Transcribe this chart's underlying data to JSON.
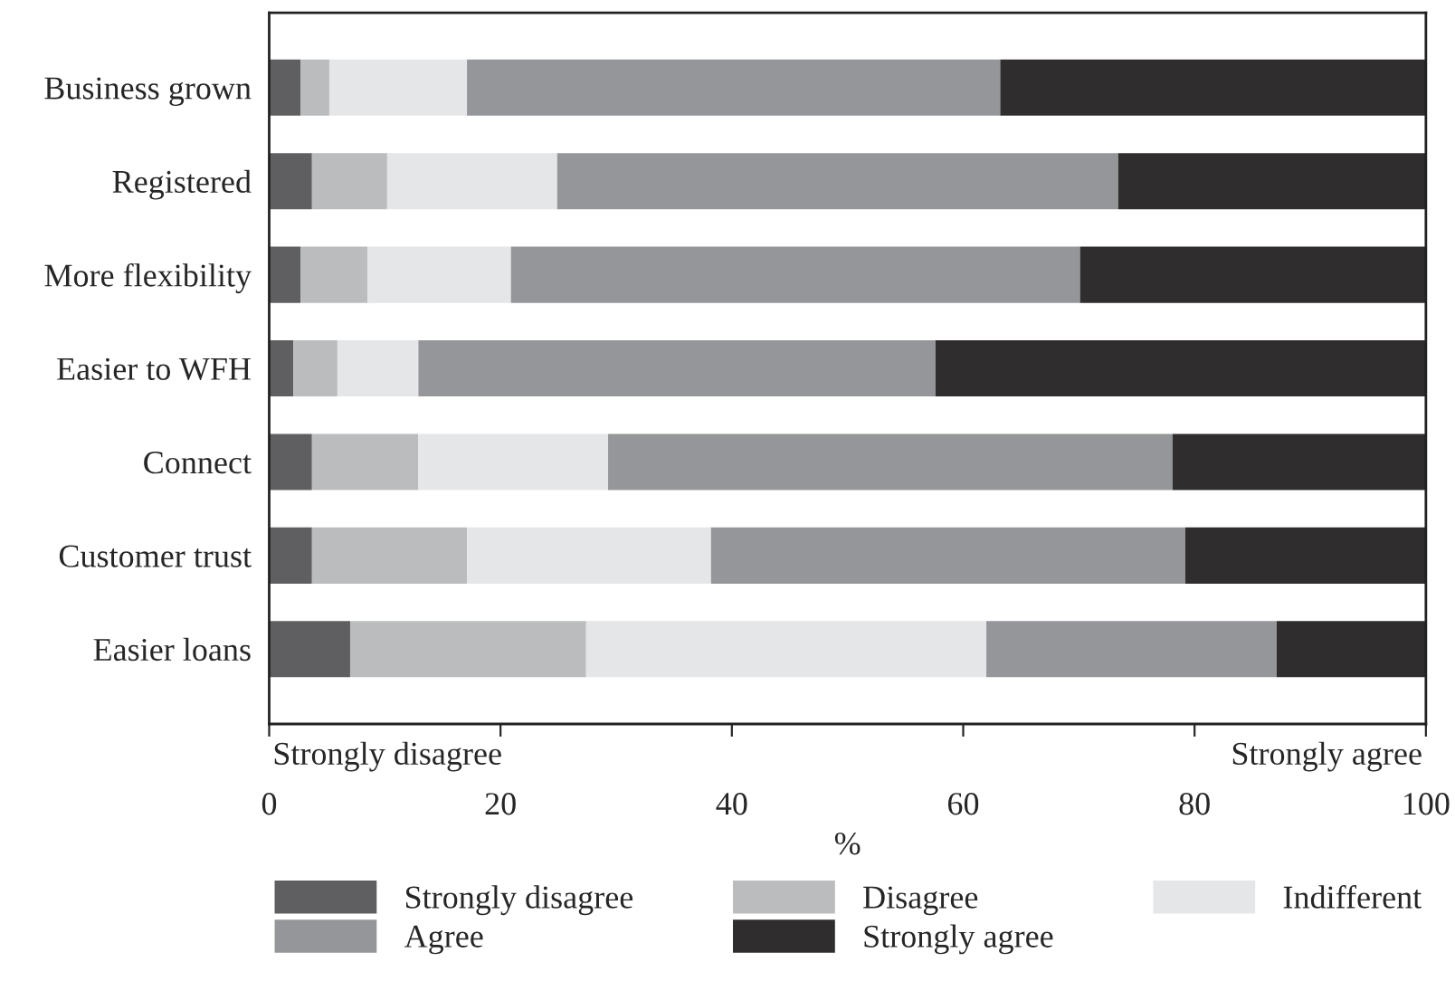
{
  "chart_data": {
    "type": "bar",
    "orientation": "horizontal",
    "stacked": true,
    "categories": [
      "Business grown",
      "Registered",
      "More flexibility",
      "Easier to WFH",
      "Connect",
      "Customer trust",
      "Easier loans"
    ],
    "series": [
      {
        "name": "Strongly disagree",
        "color": "#5f5f61",
        "values": [
          2.7,
          3.7,
          2.7,
          2.1,
          3.7,
          3.7,
          7.0
        ]
      },
      {
        "name": "Disagree",
        "color": "#bbbcbe",
        "values": [
          2.5,
          6.5,
          5.8,
          3.8,
          9.2,
          13.4,
          20.4
        ]
      },
      {
        "name": "Indifferent",
        "color": "#e5e6e7",
        "values": [
          11.9,
          14.7,
          12.4,
          7.0,
          16.4,
          21.1,
          34.6
        ]
      },
      {
        "name": "Agree",
        "color": "#959699",
        "values": [
          46.1,
          48.5,
          49.2,
          44.7,
          48.8,
          41.0,
          25.1
        ]
      },
      {
        "name": "Strongly agree",
        "color": "#2f2d2e",
        "values": [
          36.8,
          26.6,
          29.9,
          42.4,
          21.9,
          20.8,
          12.9
        ]
      }
    ],
    "xlabel": "%",
    "xlim": [
      0,
      100
    ],
    "xticks": [
      0,
      20,
      40,
      60,
      80,
      100
    ],
    "annotations": [
      "Strongly disagree",
      "Strongly agree"
    ],
    "legend": "bottom",
    "grid": false
  }
}
